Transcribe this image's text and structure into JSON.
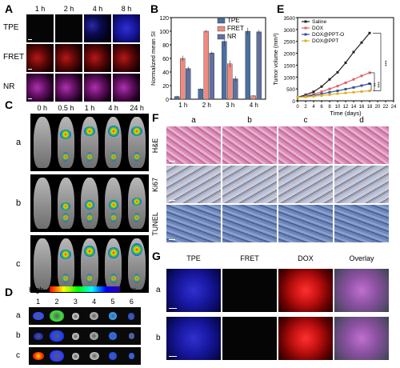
{
  "panels": {
    "A": "A",
    "B": "B",
    "C": "C",
    "D": "D",
    "E": "E",
    "F": "F",
    "G": "G"
  },
  "panelA": {
    "cols": [
      "1 h",
      "2 h",
      "4 h",
      "8 h"
    ],
    "rows": [
      "TPE",
      "FRET",
      "NR"
    ]
  },
  "panelB": {
    "chart_data": {
      "type": "bar",
      "categories": [
        "1 h",
        "2 h",
        "3 h",
        "4 h"
      ],
      "series": [
        {
          "name": "TPE",
          "values": [
            4,
            15,
            85,
            100
          ],
          "color": "#4a6fa0"
        },
        {
          "name": "FRET",
          "values": [
            60,
            100,
            52,
            5
          ],
          "color": "#f08a80"
        },
        {
          "name": "NR",
          "values": [
            45,
            68,
            30,
            99
          ],
          "color": "#6070a0"
        }
      ],
      "errors": [
        [
          1,
          1,
          7,
          5
        ],
        [
          4,
          2,
          5,
          1
        ],
        [
          3,
          2,
          4,
          3
        ]
      ],
      "ylabel": "Normalized mean SI",
      "ylim": [
        0,
        120
      ],
      "yticks": [
        "0",
        "20",
        "40",
        "60",
        "80",
        "100",
        "120"
      ]
    }
  },
  "panelC": {
    "cols": [
      "0 h",
      "0.5 h",
      "1 h",
      "4 h",
      "24 h"
    ],
    "rows": [
      "a",
      "b",
      "c"
    ]
  },
  "panelD": {
    "scale_high": "High",
    "scale_low": "Low",
    "cols": [
      "1",
      "2",
      "3",
      "4",
      "5",
      "6"
    ],
    "rows": [
      "a",
      "b",
      "c"
    ]
  },
  "panelE": {
    "chart_data": {
      "type": "line",
      "x": [
        0,
        2,
        4,
        6,
        8,
        10,
        12,
        14,
        16,
        18
      ],
      "series": [
        {
          "name": "Saline",
          "values": [
            150,
            250,
            380,
            600,
            900,
            1200,
            1600,
            2050,
            2450,
            2850
          ],
          "color": "#222222"
        },
        {
          "name": "DOX",
          "values": [
            150,
            200,
            280,
            380,
            500,
            620,
            760,
            900,
            1050,
            1180
          ],
          "color": "#e06060"
        },
        {
          "name": "DOX@PPT-O",
          "values": [
            150,
            180,
            230,
            290,
            360,
            420,
            490,
            560,
            640,
            720
          ],
          "color": "#3050a0"
        },
        {
          "name": "DOX@PPT",
          "values": [
            150,
            160,
            190,
            220,
            260,
            300,
            330,
            360,
            390,
            420
          ],
          "color": "#e0b020"
        }
      ],
      "xlabel": "Time (days)",
      "ylabel": "Tumor volume (mm³)",
      "xticks": [
        "0",
        "2",
        "4",
        "6",
        "8",
        "10",
        "12",
        "14",
        "16",
        "18",
        "20",
        "22",
        "24"
      ],
      "yticks": [
        "0",
        "500",
        "1000",
        "1500",
        "2000",
        "2500",
        "3000",
        "3500"
      ],
      "xlim": [
        0,
        24
      ],
      "ylim": [
        0,
        3500
      ],
      "sig": [
        "***",
        "***",
        "**"
      ]
    }
  },
  "panelF": {
    "cols": [
      "a",
      "b",
      "c",
      "d"
    ],
    "rows": [
      "H&E",
      "Ki67",
      "TUNEL"
    ]
  },
  "panelG": {
    "cols": [
      "TPE",
      "FRET",
      "DOX",
      "Overlay"
    ],
    "rows": [
      "a",
      "b"
    ]
  }
}
